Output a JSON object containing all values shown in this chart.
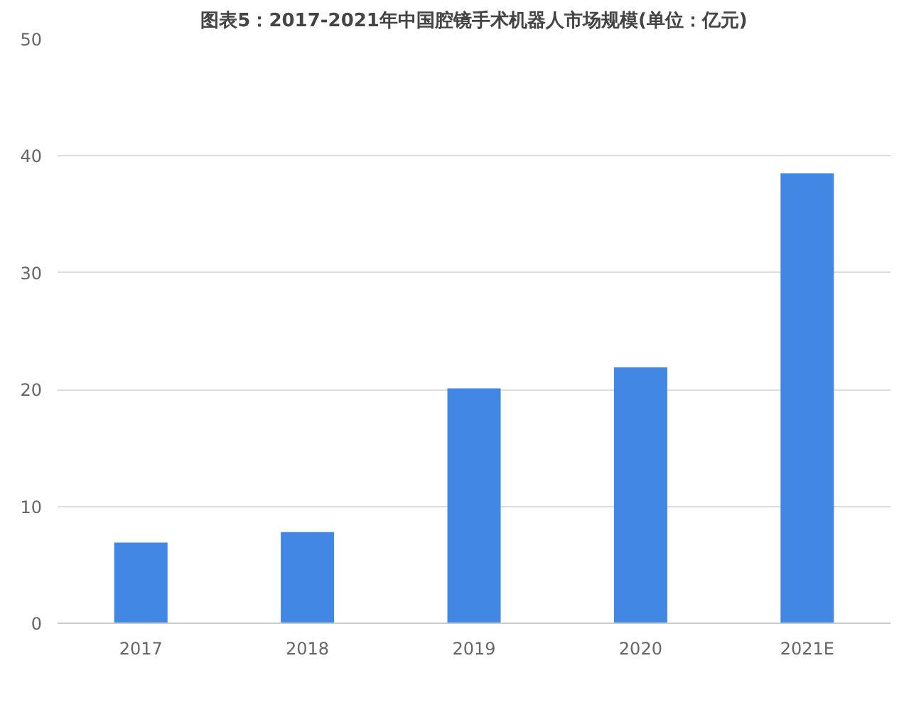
{
  "chart_data": {
    "type": "bar",
    "title": "图表5：2017-2021年中国腔镜手术机器人市场规模(单位：亿元)",
    "categories": [
      "2017",
      "2018",
      "2019",
      "2020",
      "2021E"
    ],
    "values": [
      6.9,
      7.8,
      20.1,
      21.9,
      38.5
    ],
    "color": "#4287e3",
    "ylim": [
      0,
      50
    ],
    "yticks": [
      0,
      10,
      20,
      30,
      40,
      50
    ],
    "grid": "y"
  }
}
